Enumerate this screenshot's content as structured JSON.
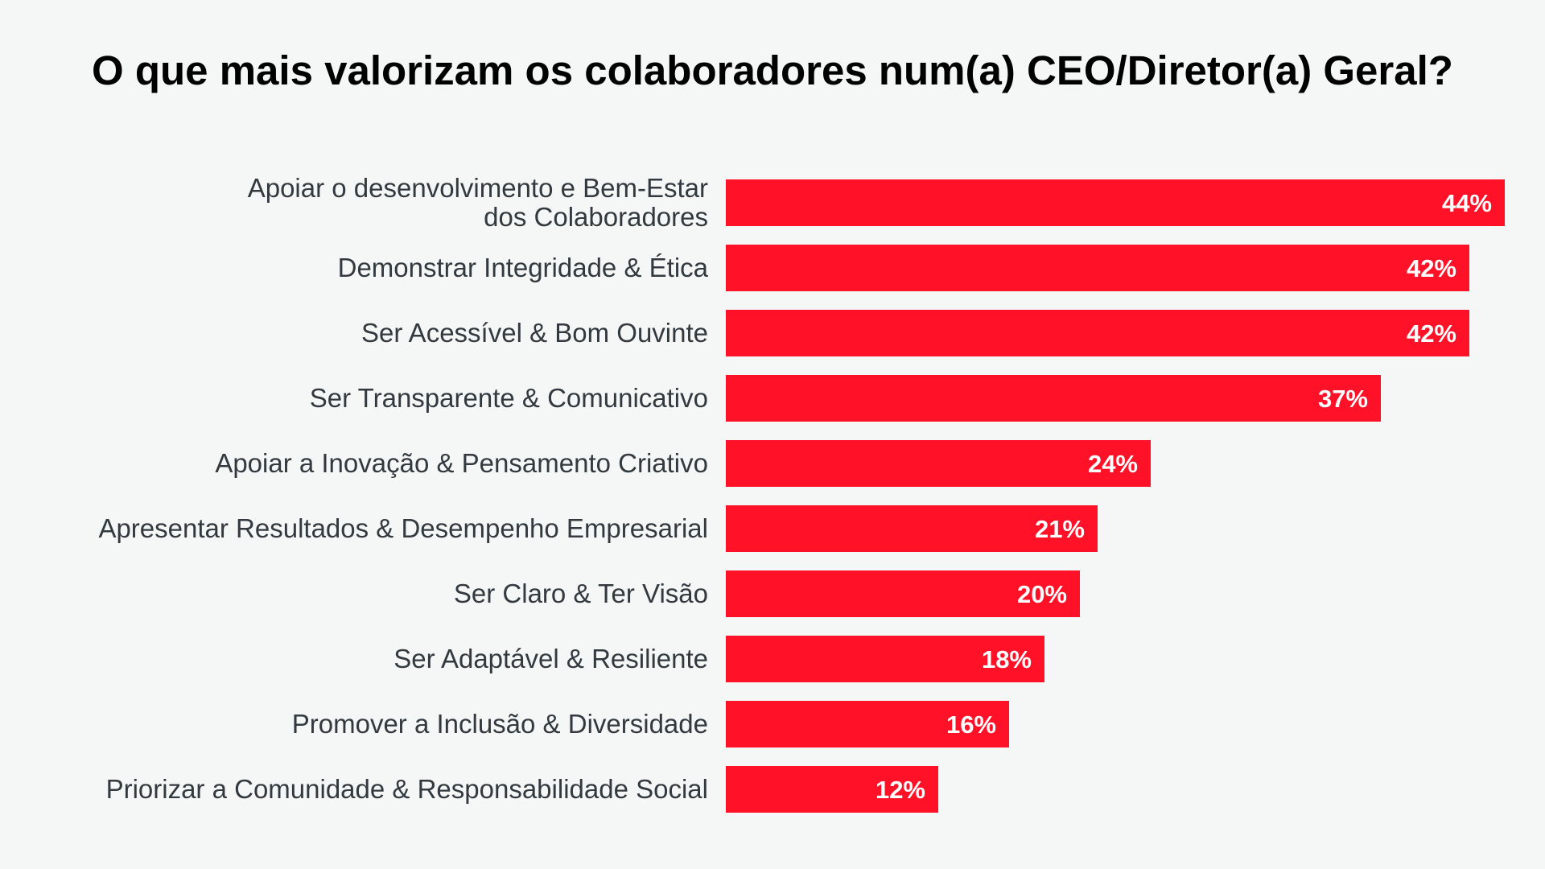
{
  "chart_data": {
    "type": "bar",
    "orientation": "horizontal",
    "title": "O que mais valorizam os colaboradores num(a) CEO/Diretor(a) Geral?",
    "categories": [
      [
        "Apoiar o desenvolvimento e Bem-Estar",
        "dos Colaboradores"
      ],
      [
        "Demonstrar Integridade & Ética"
      ],
      [
        "Ser Acessível & Bom Ouvinte"
      ],
      [
        "Ser Transparente & Comunicativo"
      ],
      [
        "Apoiar a Inovação & Pensamento Criativo"
      ],
      [
        "Apresentar Resultados & Desempenho Empresarial"
      ],
      [
        "Ser Claro & Ter Visão"
      ],
      [
        "Ser Adaptável & Resiliente"
      ],
      [
        "Promover a Inclusão & Diversidade"
      ],
      [
        "Priorizar a Comunidade & Responsabilidade Social"
      ]
    ],
    "values": [
      44,
      42,
      42,
      37,
      24,
      21,
      20,
      18,
      16,
      12
    ],
    "value_labels": [
      "44%",
      "42%",
      "42%",
      "37%",
      "24%",
      "21%",
      "20%",
      "18%",
      "16%",
      "12%"
    ],
    "unit": "%",
    "xlim": [
      0,
      44
    ],
    "grid": false,
    "bar_color": "#ff1127"
  }
}
